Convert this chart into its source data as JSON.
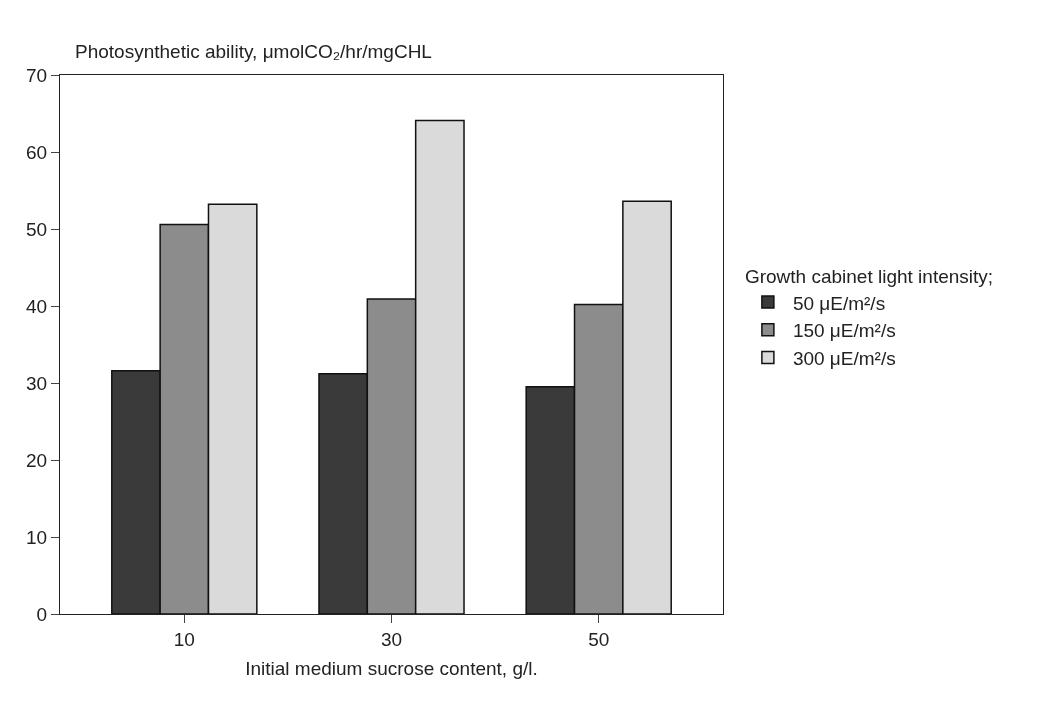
{
  "chart_data": {
    "type": "bar",
    "ylabel": "Photosynthetic ability, μmolCO₂/hr/mgCHL",
    "xlabel": "Initial medium sucrose content, g/l.",
    "legend_title": "Growth cabinet light intensity;",
    "categories": [
      "10",
      "30",
      "50"
    ],
    "series": [
      {
        "name": "50 μE/m²/s",
        "color": "#3a3a3a",
        "values": [
          31.6,
          31.2,
          29.5
        ]
      },
      {
        "name": "150 μE/m²/s",
        "color": "#8c8c8c",
        "values": [
          50.6,
          40.9,
          40.2
        ]
      },
      {
        "name": "300 μE/m²/s",
        "color": "#dadada",
        "values": [
          53.2,
          64.1,
          53.6
        ]
      }
    ],
    "ylim": [
      0,
      70
    ],
    "yticks": [
      0,
      10,
      20,
      30,
      40,
      50,
      60,
      70
    ],
    "grid": false,
    "legend": "right"
  }
}
